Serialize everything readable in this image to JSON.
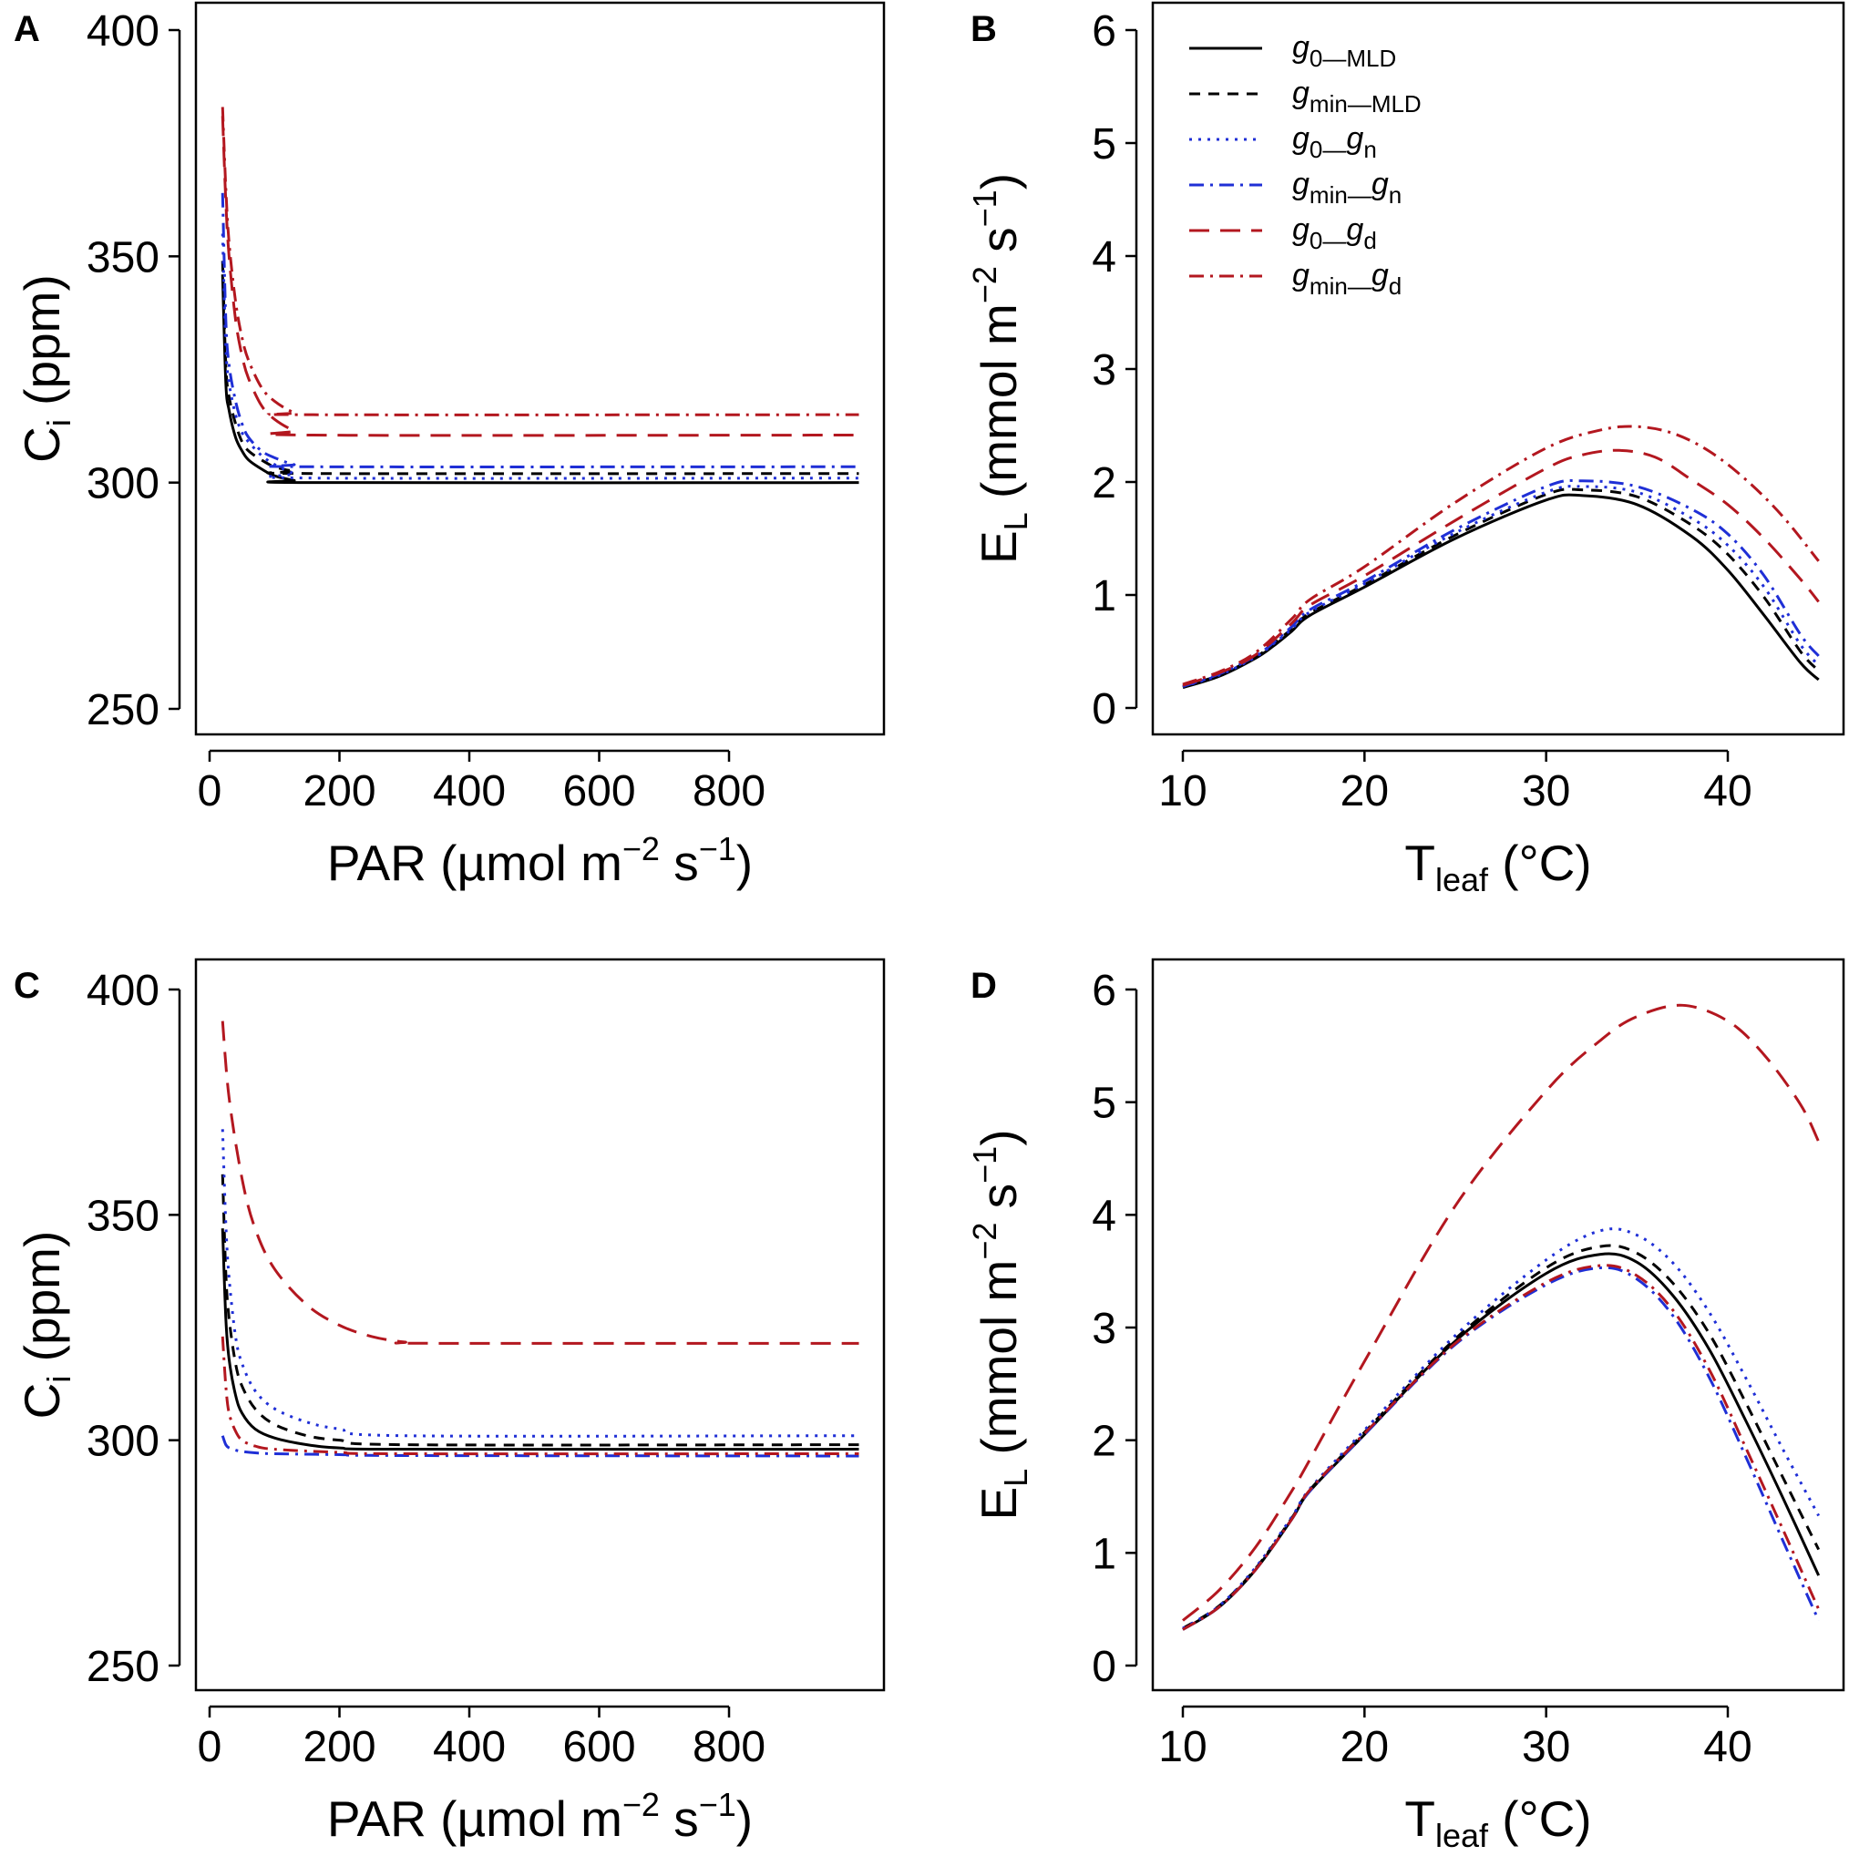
{
  "colors": {
    "black": "#000000",
    "blue": "#1f2fd6",
    "red": "#b3171f"
  },
  "legend": [
    {
      "key": "g0_MLD",
      "main": "g",
      "sub": "0—MLD",
      "sub2": "",
      "color": "#000000",
      "dash": "solid"
    },
    {
      "key": "gmin_MLD",
      "main": "g",
      "sub": "min—MLD",
      "sub2": "",
      "color": "#000000",
      "dash": "shortdash"
    },
    {
      "key": "g0_gn",
      "main": "g",
      "sub": "0—",
      "sub2": "n",
      "color": "#1f2fd6",
      "dash": "dotted"
    },
    {
      "key": "gmin_gn",
      "main": "g",
      "sub": "min—",
      "sub2": "n",
      "color": "#1f2fd6",
      "dash": "dotdash"
    },
    {
      "key": "g0_gd",
      "main": "g",
      "sub": "0—",
      "sub2": "d",
      "color": "#b3171f",
      "dash": "longdash"
    },
    {
      "key": "gmin_gd",
      "main": "g",
      "sub": "min—",
      "sub2": "d",
      "color": "#b3171f",
      "dash": "dotdash"
    }
  ],
  "chart_data": [
    {
      "panel": "A",
      "type": "line",
      "xlabel": {
        "main": "PAR  (µmol m",
        "sup1": "−2",
        "mid": " s",
        "sup2": "−1",
        "end": ")"
      },
      "ylabel": {
        "main": "C",
        "sub": "i",
        "rest": "  (ppm)"
      },
      "xlim": [
        0,
        1000
      ],
      "ylim": [
        245,
        405
      ],
      "xticks": [
        0,
        200,
        400,
        600,
        800
      ],
      "yticks": [
        250,
        300,
        350,
        400
      ],
      "series": [
        {
          "key": "g0_MLD",
          "x": [
            20,
            25,
            30,
            40,
            50,
            60,
            80,
            100,
            130,
            160,
            1000
          ],
          "y": [
            346,
            322,
            316,
            310,
            307,
            305,
            303,
            301.5,
            300.5,
            300,
            300
          ]
        },
        {
          "key": "gmin_MLD",
          "x": [
            20,
            25,
            30,
            40,
            50,
            60,
            80,
            100,
            130,
            160,
            1000
          ],
          "y": [
            349,
            326,
            319,
            313,
            309,
            307,
            305,
            303.5,
            302.5,
            302,
            302
          ]
        },
        {
          "key": "g0_gn",
          "x": [
            20,
            25,
            30,
            40,
            50,
            60,
            80,
            100,
            130,
            160,
            1000
          ],
          "y": [
            355,
            330,
            322,
            315,
            311,
            309,
            306,
            304,
            302,
            301,
            301
          ]
        },
        {
          "key": "gmin_gn",
          "x": [
            20,
            25,
            30,
            40,
            50,
            60,
            80,
            100,
            130,
            160,
            1000
          ],
          "y": [
            364,
            336,
            326,
            318,
            313,
            310,
            307,
            305.5,
            304,
            303.5,
            303.5
          ]
        },
        {
          "key": "g0_gd",
          "x": [
            20,
            25,
            30,
            40,
            50,
            60,
            80,
            100,
            130,
            160,
            1000
          ],
          "y": [
            381,
            362,
            350,
            336,
            328,
            323,
            317,
            314,
            311.5,
            310.5,
            310.5
          ]
        },
        {
          "key": "gmin_gd",
          "x": [
            20,
            25,
            30,
            40,
            50,
            60,
            80,
            100,
            130,
            160,
            1000
          ],
          "y": [
            383,
            365,
            353,
            340,
            332,
            327,
            321,
            318,
            315.5,
            315,
            315
          ]
        }
      ]
    },
    {
      "panel": "B",
      "type": "line",
      "xlabel": {
        "main": "T",
        "sub": "leaf",
        "rest": "  (°C)"
      },
      "ylabel": {
        "main": "E",
        "sub": "L",
        "rest": "  (mmol m",
        "sup1": "−2",
        "mid": " s",
        "sup2": "−1",
        "end": ")"
      },
      "xlim": [
        8.5,
        46
      ],
      "ylim": [
        -0.3,
        6.25
      ],
      "xticks": [
        10,
        20,
        30,
        40
      ],
      "yticks": [
        0,
        1,
        2,
        3,
        4,
        5,
        6
      ],
      "series": [
        {
          "key": "g0_MLD",
          "x": [
            10,
            12,
            14,
            15,
            16,
            17,
            20,
            25,
            30,
            32,
            35,
            38,
            40,
            42,
            44,
            45
          ],
          "y": [
            0.18,
            0.28,
            0.44,
            0.55,
            0.68,
            0.82,
            1.07,
            1.5,
            1.84,
            1.88,
            1.8,
            1.52,
            1.22,
            0.82,
            0.4,
            0.25
          ]
        },
        {
          "key": "gmin_MLD",
          "x": [
            10,
            12,
            14,
            15,
            16,
            17,
            20,
            25,
            30,
            32,
            35,
            38,
            40,
            42,
            44,
            45
          ],
          "y": [
            0.19,
            0.29,
            0.45,
            0.57,
            0.7,
            0.84,
            1.09,
            1.53,
            1.89,
            1.93,
            1.87,
            1.62,
            1.36,
            0.98,
            0.5,
            0.33
          ]
        },
        {
          "key": "g0_gn",
          "x": [
            10,
            12,
            14,
            15,
            16,
            17,
            20,
            25,
            30,
            32,
            35,
            38,
            40,
            42,
            44,
            45
          ],
          "y": [
            0.19,
            0.29,
            0.45,
            0.57,
            0.7,
            0.85,
            1.1,
            1.55,
            1.91,
            1.96,
            1.91,
            1.68,
            1.44,
            1.07,
            0.56,
            0.38
          ]
        },
        {
          "key": "gmin_gn",
          "x": [
            10,
            12,
            14,
            15,
            16,
            17,
            20,
            25,
            30,
            32,
            35,
            38,
            40,
            42,
            44,
            45
          ],
          "y": [
            0.19,
            0.3,
            0.46,
            0.58,
            0.72,
            0.87,
            1.12,
            1.58,
            1.96,
            2.01,
            1.96,
            1.76,
            1.54,
            1.17,
            0.65,
            0.46
          ]
        },
        {
          "key": "g0_gd",
          "x": [
            10,
            12,
            14,
            16,
            17,
            20,
            25,
            30,
            32,
            34,
            36,
            38,
            40,
            42,
            44,
            45
          ],
          "y": [
            0.2,
            0.31,
            0.47,
            0.75,
            0.91,
            1.17,
            1.66,
            2.12,
            2.24,
            2.28,
            2.22,
            2.02,
            1.8,
            1.5,
            1.14,
            0.94
          ]
        },
        {
          "key": "gmin_gd",
          "x": [
            10,
            12,
            14,
            16,
            17,
            20,
            25,
            30,
            33,
            35,
            37,
            39,
            41,
            43,
            45
          ],
          "y": [
            0.21,
            0.32,
            0.49,
            0.79,
            0.96,
            1.25,
            1.82,
            2.3,
            2.46,
            2.49,
            2.43,
            2.27,
            2.02,
            1.7,
            1.3
          ]
        }
      ]
    },
    {
      "panel": "C",
      "type": "line",
      "xlabel": {
        "main": "PAR  (µmol m",
        "sup1": "−2",
        "mid": " s",
        "sup2": "−1",
        "end": ")"
      },
      "ylabel": {
        "main": "C",
        "sub": "i",
        "rest": "  (ppm)"
      },
      "xlim": [
        0,
        1000
      ],
      "ylim": [
        245,
        405
      ],
      "xticks": [
        0,
        200,
        400,
        600,
        800
      ],
      "yticks": [
        250,
        300,
        350,
        400
      ],
      "series": [
        {
          "key": "g0_MLD",
          "x": [
            20,
            25,
            30,
            40,
            50,
            70,
            100,
            150,
            200,
            300,
            1000
          ],
          "y": [
            347,
            327,
            318,
            310,
            306,
            302.5,
            300.5,
            299,
            298.3,
            298,
            298
          ]
        },
        {
          "key": "gmin_MLD",
          "x": [
            20,
            25,
            30,
            40,
            50,
            70,
            100,
            150,
            200,
            300,
            1000
          ],
          "y": [
            359,
            337,
            327,
            317,
            312,
            307,
            303.5,
            301,
            300,
            299,
            299
          ]
        },
        {
          "key": "g0_gn",
          "x": [
            20,
            25,
            30,
            40,
            50,
            70,
            100,
            150,
            200,
            300,
            1000
          ],
          "y": [
            369,
            348,
            336,
            323,
            317,
            311,
            307,
            304,
            302.5,
            301,
            301
          ]
        },
        {
          "key": "gmin_gn",
          "x": [
            20,
            25,
            30,
            40,
            50,
            70,
            100,
            200,
            300,
            1000
          ],
          "y": [
            301,
            299,
            298.3,
            297.8,
            297.5,
            297.2,
            297,
            296.8,
            296.6,
            296.5
          ]
        },
        {
          "key": "g0_gd",
          "x": [
            20,
            30,
            50,
            70,
            100,
            150,
            200,
            250,
            300,
            350,
            1000
          ],
          "y": [
            393,
            376,
            358,
            347,
            338,
            330,
            325.5,
            323,
            321.8,
            321.5,
            321.5
          ]
        },
        {
          "key": "gmin_gd",
          "x": [
            20,
            25,
            30,
            40,
            50,
            70,
            100,
            200,
            300,
            1000
          ],
          "y": [
            323,
            312,
            306,
            302,
            300,
            298.7,
            298,
            297.3,
            297,
            297
          ]
        }
      ]
    },
    {
      "panel": "D",
      "type": "line",
      "xlabel": {
        "main": "T",
        "sub": "leaf",
        "rest": "  (°C)"
      },
      "ylabel": {
        "main": "E",
        "sub": "L",
        "rest": "  (mmol m",
        "sup1": "−2",
        "mid": " s",
        "sup2": "−1",
        "end": ")"
      },
      "xlim": [
        8.5,
        46
      ],
      "ylim": [
        -0.3,
        6.25
      ],
      "xticks": [
        10,
        20,
        30,
        40
      ],
      "yticks": [
        0,
        1,
        2,
        3,
        4,
        5,
        6
      ],
      "series": [
        {
          "key": "g0_MLD",
          "x": [
            10,
            12,
            14,
            16,
            17,
            20,
            25,
            30,
            33,
            35,
            37,
            39,
            41,
            43,
            45
          ],
          "y": [
            0.32,
            0.52,
            0.85,
            1.3,
            1.55,
            2.05,
            2.88,
            3.48,
            3.65,
            3.58,
            3.28,
            2.8,
            2.17,
            1.5,
            0.8
          ]
        },
        {
          "key": "gmin_MLD",
          "x": [
            10,
            12,
            14,
            16,
            17,
            20,
            25,
            30,
            33,
            35,
            37,
            39,
            41,
            43,
            45
          ],
          "y": [
            0.33,
            0.53,
            0.86,
            1.31,
            1.56,
            2.07,
            2.9,
            3.53,
            3.72,
            3.66,
            3.39,
            2.94,
            2.33,
            1.68,
            1.03
          ]
        },
        {
          "key": "g0_gn",
          "x": [
            10,
            12,
            14,
            16,
            17,
            20,
            25,
            30,
            33,
            35,
            37,
            39,
            41,
            43,
            45
          ],
          "y": [
            0.33,
            0.53,
            0.87,
            1.32,
            1.57,
            2.09,
            2.93,
            3.6,
            3.86,
            3.82,
            3.57,
            3.13,
            2.55,
            1.93,
            1.33
          ]
        },
        {
          "key": "gmin_gn",
          "x": [
            10,
            12,
            14,
            16,
            17,
            20,
            25,
            30,
            33,
            35,
            37,
            39,
            41,
            43,
            45
          ],
          "y": [
            0.32,
            0.52,
            0.85,
            1.3,
            1.55,
            2.05,
            2.85,
            3.38,
            3.53,
            3.43,
            3.1,
            2.55,
            1.85,
            1.12,
            0.4
          ]
        },
        {
          "key": "g0_gd",
          "x": [
            10,
            12,
            14,
            16,
            17,
            20,
            25,
            30,
            33,
            35,
            37.5,
            40,
            42,
            44,
            45
          ],
          "y": [
            0.4,
            0.67,
            1.05,
            1.55,
            1.83,
            2.7,
            4.08,
            5.1,
            5.55,
            5.76,
            5.86,
            5.72,
            5.42,
            4.98,
            4.65
          ]
        },
        {
          "key": "gmin_gd",
          "x": [
            10,
            12,
            14,
            16,
            17,
            20,
            25,
            30,
            33,
            35,
            37,
            39,
            41,
            43,
            45
          ],
          "y": [
            0.32,
            0.52,
            0.85,
            1.3,
            1.56,
            2.06,
            2.86,
            3.4,
            3.55,
            3.46,
            3.15,
            2.62,
            1.93,
            1.22,
            0.5
          ]
        }
      ]
    }
  ]
}
